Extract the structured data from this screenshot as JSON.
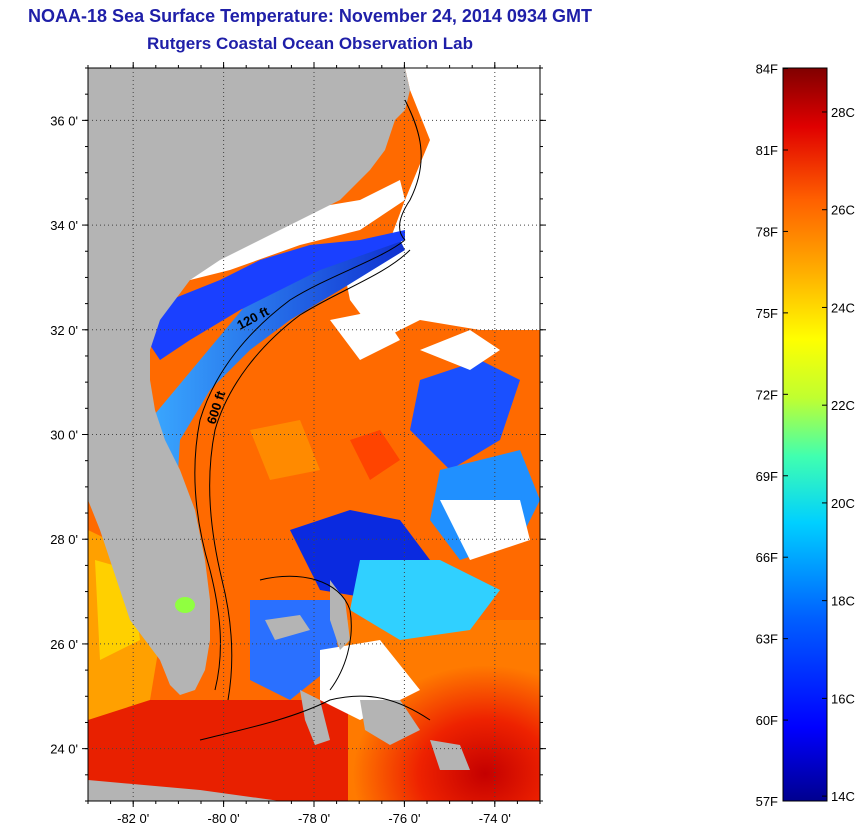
{
  "title": {
    "line1": "NOAA-18 Sea Surface Temperature:  November 24, 2014 0934 GMT",
    "line2": "Rutgers Coastal Ocean Observation Lab"
  },
  "map": {
    "lon_range": [
      -83,
      -73
    ],
    "lat_range": [
      23,
      37
    ],
    "lat_ticks": [
      {
        "value": 36,
        "label": "36 0'"
      },
      {
        "value": 34,
        "label": "34 0'"
      },
      {
        "value": 32,
        "label": "32 0'"
      },
      {
        "value": 30,
        "label": "30 0'"
      },
      {
        "value": 28,
        "label": "28 0'"
      },
      {
        "value": 26,
        "label": "26 0'"
      },
      {
        "value": 24,
        "label": "24 0'"
      }
    ],
    "lon_ticks": [
      {
        "value": -82,
        "label": "-82 0'"
      },
      {
        "value": -80,
        "label": "-80 0'"
      },
      {
        "value": -78,
        "label": "-78 0'"
      },
      {
        "value": -76,
        "label": "-76 0'"
      },
      {
        "value": -74,
        "label": "-74 0'"
      }
    ],
    "contour_labels": [
      "120 ft",
      "600 ft"
    ],
    "colors": {
      "land": "#b4b4b4",
      "cloud": "#ffffff",
      "grid": "#444444"
    }
  },
  "colorbar": {
    "fahrenheit_labels": [
      "84F",
      "81F",
      "78F",
      "75F",
      "72F",
      "69F",
      "66F",
      "63F",
      "60F",
      "57F"
    ],
    "celsius_labels": [
      "28C",
      "26C",
      "24C",
      "22C",
      "20C",
      "18C",
      "16C",
      "14C"
    ],
    "range_c": [
      13.9,
      28.9
    ],
    "colors": [
      "#00008f",
      "#0000ff",
      "#0060ff",
      "#00d0ff",
      "#40ffb0",
      "#c0ff30",
      "#ffff00",
      "#ffb000",
      "#ff6000",
      "#e00000",
      "#800000"
    ]
  }
}
